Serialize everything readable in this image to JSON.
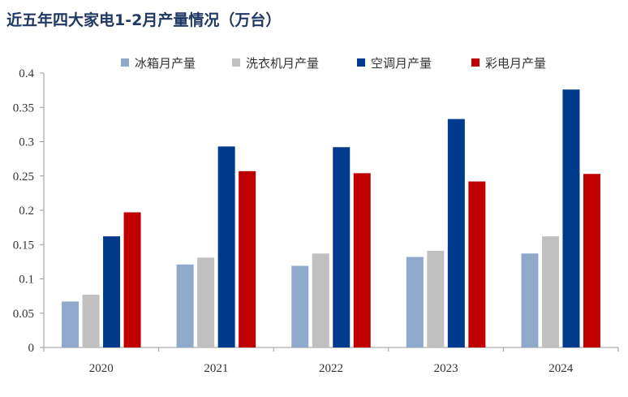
{
  "chart_data": {
    "type": "bar",
    "title": "近五年四大家电1-2月产量情况（万台）",
    "categories": [
      "2020",
      "2021",
      "2022",
      "2023",
      "2024"
    ],
    "series": [
      {
        "name": "冰箱月产量",
        "color": "#8ea9cc",
        "values": [
          0.067,
          0.121,
          0.119,
          0.132,
          0.137
        ]
      },
      {
        "name": "洗衣机月产量",
        "color": "#c0c0c0",
        "values": [
          0.077,
          0.131,
          0.137,
          0.141,
          0.162
        ]
      },
      {
        "name": "空调月产量",
        "color": "#003a8c",
        "values": [
          0.162,
          0.293,
          0.292,
          0.333,
          0.376
        ]
      },
      {
        "name": "彩电月产量",
        "color": "#c00000",
        "values": [
          0.197,
          0.257,
          0.254,
          0.242,
          0.253
        ]
      }
    ],
    "ylim": [
      0,
      0.4
    ],
    "yticks": [
      "0",
      "0.05",
      "0.1",
      "0.15",
      "0.2",
      "0.25",
      "0.3",
      "0.35",
      "0.4"
    ],
    "xlabel": "",
    "ylabel": "",
    "grid": false,
    "legend_position": "top"
  }
}
